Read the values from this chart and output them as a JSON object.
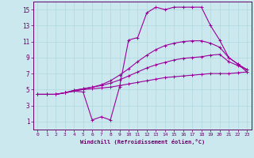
{
  "xlabel": "Windchill (Refroidissement éolien,°C)",
  "background_color": "#cce8ef",
  "grid_color": "#b0d8e0",
  "line_color": "#990099",
  "spine_color": "#660066",
  "xlim": [
    -0.5,
    23.5
  ],
  "ylim": [
    0,
    16
  ],
  "xticks": [
    0,
    1,
    2,
    3,
    4,
    5,
    6,
    7,
    8,
    9,
    10,
    11,
    12,
    13,
    14,
    15,
    16,
    17,
    18,
    19,
    20,
    21,
    22,
    23
  ],
  "yticks": [
    1,
    3,
    5,
    7,
    9,
    11,
    13,
    15
  ],
  "curves": [
    {
      "x": [
        0,
        1,
        2,
        3,
        4,
        5,
        6,
        7,
        8,
        9,
        10,
        11,
        12,
        13,
        14,
        15,
        16,
        17,
        18,
        19,
        20,
        21,
        22,
        23
      ],
      "y": [
        4.4,
        4.4,
        4.4,
        4.6,
        4.8,
        5.0,
        5.1,
        5.2,
        5.3,
        5.5,
        5.7,
        5.9,
        6.1,
        6.3,
        6.5,
        6.6,
        6.7,
        6.8,
        6.9,
        7.0,
        7.0,
        7.0,
        7.1,
        7.2
      ]
    },
    {
      "x": [
        0,
        1,
        2,
        3,
        4,
        5,
        6,
        7,
        8,
        9,
        10,
        11,
        12,
        13,
        14,
        15,
        16,
        17,
        18,
        19,
        20,
        21,
        22,
        23
      ],
      "y": [
        4.4,
        4.4,
        4.4,
        4.6,
        4.9,
        5.1,
        5.3,
        5.5,
        5.8,
        6.2,
        6.7,
        7.2,
        7.7,
        8.1,
        8.4,
        8.7,
        8.9,
        9.0,
        9.1,
        9.3,
        9.4,
        8.5,
        8.0,
        7.5
      ]
    },
    {
      "x": [
        0,
        1,
        2,
        3,
        4,
        5,
        6,
        7,
        8,
        9,
        10,
        11,
        12,
        13,
        14,
        15,
        16,
        17,
        18,
        19,
        20,
        21,
        22,
        23
      ],
      "y": [
        4.4,
        4.4,
        4.4,
        4.6,
        4.9,
        5.1,
        5.3,
        5.6,
        6.1,
        6.8,
        7.6,
        8.5,
        9.3,
        10.0,
        10.5,
        10.8,
        11.0,
        11.1,
        11.1,
        10.8,
        10.3,
        9.0,
        8.2,
        7.5
      ]
    },
    {
      "x": [
        0,
        1,
        2,
        3,
        4,
        5,
        6,
        7,
        8,
        9,
        10,
        11,
        12,
        13,
        14,
        15,
        16,
        17,
        18,
        19,
        20,
        21,
        22,
        23
      ],
      "y": [
        4.4,
        4.4,
        4.4,
        4.6,
        4.8,
        4.7,
        1.2,
        1.6,
        1.2,
        5.3,
        11.2,
        11.5,
        14.6,
        15.3,
        15.0,
        15.3,
        15.3,
        15.3,
        15.3,
        13.0,
        11.2,
        9.0,
        8.2,
        7.2
      ]
    }
  ]
}
